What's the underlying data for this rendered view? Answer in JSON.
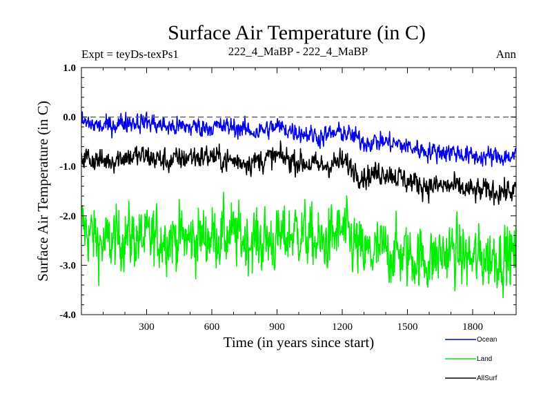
{
  "chart_data": {
    "type": "line",
    "title": "Surface Air Temperature (in C)",
    "subtitle_left": "Expt = teyDs-texPs1",
    "subtitle_center": "222_4_MaBP - 222_4_MaBP",
    "subtitle_right": "Ann",
    "xlabel": "Time (in years since start)",
    "ylabel": "Surface Air Temperature (in C)",
    "xlim": [
      0,
      2000
    ],
    "ylim": [
      -4.0,
      1.0
    ],
    "x_ticks": [
      300,
      600,
      900,
      1200,
      1500,
      1800
    ],
    "x_tick_labels": [
      "300",
      "600",
      "900",
      "1200",
      "1500",
      "1800"
    ],
    "y_ticks": [
      1.0,
      0.0,
      -1.0,
      -2.0,
      -3.0,
      -4.0
    ],
    "y_tick_labels": [
      "1.0",
      "0.0",
      "-1.0",
      "-2.0",
      "-3.0",
      "-4.0"
    ],
    "reference_line": 0.0,
    "series": [
      {
        "name": "Land",
        "color": "#00ee00",
        "x": [
          0,
          100,
          200,
          300,
          400,
          500,
          600,
          700,
          800,
          900,
          1000,
          1100,
          1200,
          1300,
          1400,
          1500,
          1600,
          1700,
          1800,
          1900,
          2000
        ],
        "values": [
          -2.2,
          -2.6,
          -2.4,
          -2.5,
          -2.4,
          -2.5,
          -2.4,
          -2.4,
          -2.5,
          -2.5,
          -2.3,
          -2.6,
          -2.3,
          -2.8,
          -2.7,
          -2.8,
          -2.9,
          -2.7,
          -2.9,
          -2.8,
          -2.8
        ]
      },
      {
        "name": "AllSurf",
        "color": "#000000",
        "x": [
          0,
          100,
          200,
          300,
          400,
          500,
          600,
          700,
          800,
          900,
          1000,
          1100,
          1200,
          1300,
          1400,
          1500,
          1600,
          1700,
          1800,
          1900,
          2000
        ],
        "values": [
          -0.8,
          -0.9,
          -0.8,
          -0.8,
          -0.9,
          -0.8,
          -0.8,
          -0.9,
          -0.9,
          -0.8,
          -0.9,
          -1.0,
          -0.9,
          -1.2,
          -1.1,
          -1.3,
          -1.4,
          -1.4,
          -1.5,
          -1.5,
          -1.5
        ]
      },
      {
        "name": "Ocean",
        "color": "#0000ee",
        "x": [
          0,
          100,
          200,
          300,
          400,
          500,
          600,
          700,
          800,
          900,
          1000,
          1100,
          1200,
          1300,
          1400,
          1500,
          1600,
          1700,
          1800,
          1900,
          2000
        ],
        "values": [
          -0.1,
          -0.2,
          -0.1,
          -0.1,
          -0.2,
          -0.2,
          -0.2,
          -0.2,
          -0.3,
          -0.2,
          -0.3,
          -0.4,
          -0.3,
          -0.5,
          -0.5,
          -0.6,
          -0.7,
          -0.7,
          -0.8,
          -0.8,
          -0.8
        ]
      }
    ],
    "legend_position": "bottom-right"
  }
}
